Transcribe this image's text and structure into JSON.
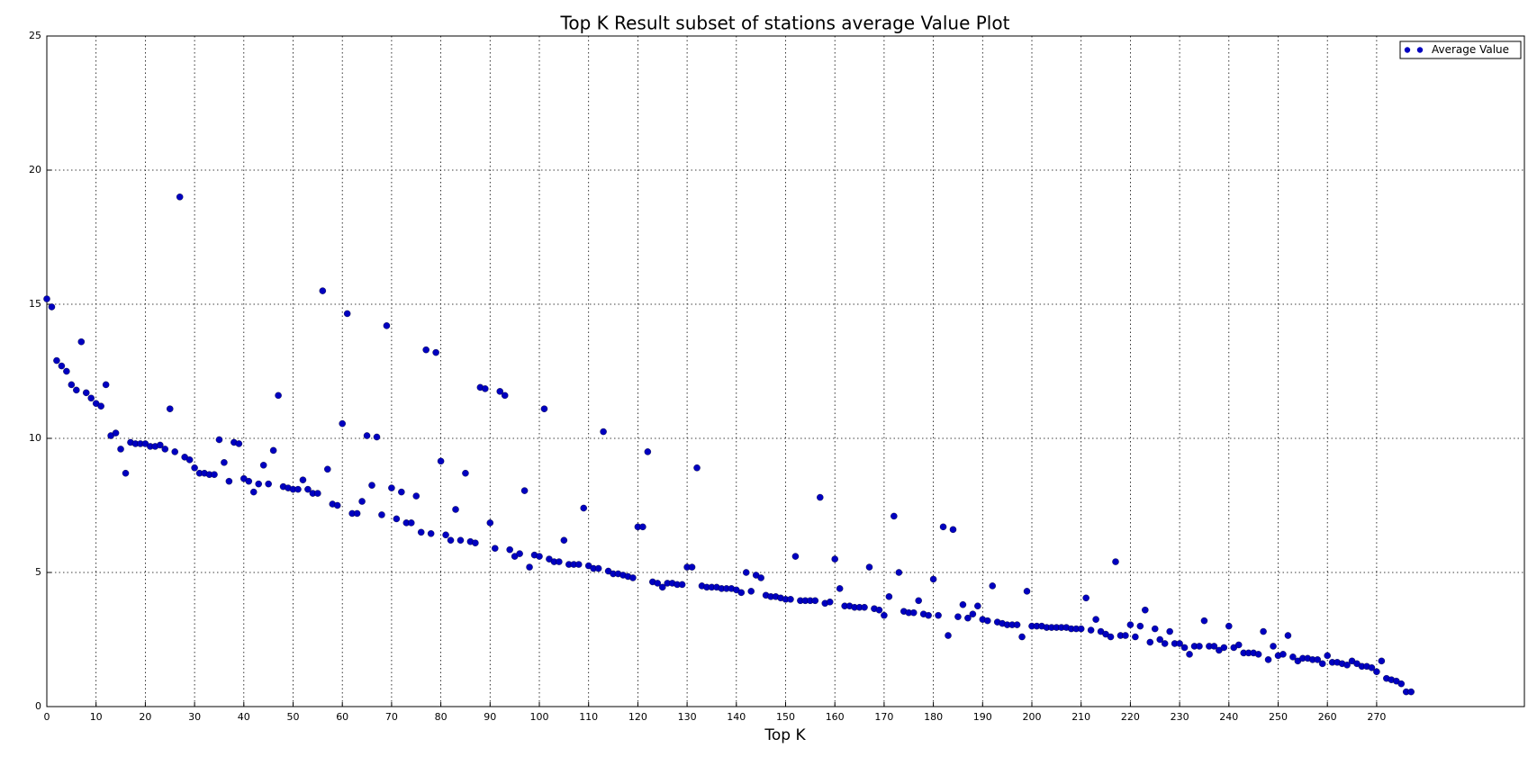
{
  "chart_data": {
    "type": "scatter",
    "title": "Top K Result subset of stations average Value Plot",
    "x_label": "Top K",
    "x": [
      0,
      1,
      2,
      3,
      4,
      5,
      6,
      7,
      8,
      9,
      10,
      11,
      12,
      13,
      14,
      15,
      16,
      17,
      18,
      19,
      20,
      21,
      22,
      23,
      24,
      25,
      26,
      27,
      28,
      29,
      30,
      31,
      32,
      33,
      34,
      35,
      36,
      37,
      38,
      39,
      40,
      41,
      42,
      43,
      44,
      45,
      46,
      47,
      48,
      49,
      50,
      51,
      52,
      53,
      54,
      55,
      56,
      57,
      58,
      59,
      60,
      61,
      62,
      63,
      64,
      65,
      66,
      67,
      68,
      69,
      70,
      71,
      72,
      73,
      74,
      75,
      76,
      77,
      78,
      79,
      80,
      81,
      82,
      83,
      84,
      85,
      86,
      87,
      88,
      89,
      90,
      91,
      92,
      93,
      94,
      95,
      96,
      97,
      98,
      99,
      100,
      101,
      102,
      103,
      104,
      105,
      106,
      107,
      108,
      109,
      110,
      111,
      112,
      113,
      114,
      115,
      116,
      117,
      118,
      119,
      120,
      121,
      122,
      123,
      124,
      125,
      126,
      127,
      128,
      129,
      130,
      131,
      132,
      133,
      134,
      135,
      136,
      137,
      138,
      139,
      140,
      141,
      142,
      143,
      144,
      145,
      146,
      147,
      148,
      149,
      150,
      151,
      152,
      153,
      154,
      155,
      156,
      157,
      158,
      159,
      160,
      161,
      162,
      163,
      164,
      165,
      166,
      167,
      168,
      169,
      170,
      171,
      172,
      173,
      174,
      175,
      176,
      177,
      178,
      179,
      180,
      181,
      182,
      183,
      184,
      185,
      186,
      187,
      188,
      189,
      190,
      191,
      192,
      193,
      194,
      195,
      196,
      197,
      198,
      199,
      200,
      201,
      202,
      203,
      204,
      205,
      206,
      207,
      208,
      209,
      210,
      211,
      212,
      213,
      214,
      215,
      216,
      217,
      218,
      219,
      220,
      221,
      222,
      223,
      224,
      225,
      226,
      227,
      228,
      229,
      230,
      231,
      232,
      233,
      234,
      235,
      236,
      237,
      238,
      239,
      240,
      241,
      242,
      243,
      244,
      245,
      246,
      247,
      248,
      249,
      250,
      251,
      252,
      253,
      254,
      255,
      256,
      257,
      258,
      259,
      260,
      261,
      262,
      263,
      264,
      265,
      266,
      267,
      268,
      269,
      270,
      271,
      272,
      273,
      274,
      275,
      276,
      277
    ],
    "series": [
      {
        "name": "Average Value",
        "color": "#0000c0",
        "values": [
          15.2,
          14.9,
          12.9,
          12.7,
          12.5,
          12.0,
          11.8,
          13.6,
          11.7,
          11.5,
          11.3,
          11.2,
          12.0,
          10.1,
          10.2,
          9.6,
          8.7,
          9.85,
          9.8,
          9.8,
          9.8,
          9.7,
          9.7,
          9.75,
          9.6,
          11.1,
          9.5,
          19.0,
          9.3,
          9.2,
          8.9,
          8.7,
          8.7,
          8.65,
          8.65,
          9.95,
          9.1,
          8.4,
          9.85,
          9.8,
          8.5,
          8.4,
          8.0,
          8.3,
          9.0,
          8.3,
          9.55,
          11.6,
          8.2,
          8.15,
          8.1,
          8.1,
          8.45,
          8.1,
          7.95,
          7.95,
          15.5,
          8.85,
          7.55,
          7.5,
          10.55,
          14.65,
          7.2,
          7.2,
          7.65,
          10.1,
          8.25,
          10.05,
          7.15,
          14.2,
          8.15,
          7.0,
          8.0,
          6.85,
          6.85,
          7.85,
          6.5,
          13.3,
          6.45,
          13.2,
          9.15,
          6.4,
          6.2,
          7.35,
          6.2,
          8.7,
          6.15,
          6.1,
          11.9,
          11.85,
          6.85,
          5.9,
          11.75,
          11.6,
          5.85,
          5.6,
          5.7,
          8.05,
          5.2,
          5.65,
          5.6,
          11.1,
          5.5,
          5.4,
          5.4,
          6.2,
          5.3,
          5.3,
          5.3,
          7.4,
          5.25,
          5.15,
          5.15,
          10.25,
          5.05,
          4.95,
          4.95,
          4.9,
          4.85,
          4.8,
          6.7,
          6.7,
          9.5,
          4.65,
          4.6,
          4.45,
          4.6,
          4.6,
          4.55,
          4.55,
          5.2,
          5.2,
          8.9,
          4.5,
          4.45,
          4.45,
          4.45,
          4.4,
          4.4,
          4.4,
          4.35,
          4.25,
          5.0,
          4.3,
          4.9,
          4.8,
          4.15,
          4.1,
          4.1,
          4.05,
          4.0,
          4.0,
          5.6,
          3.95,
          3.95,
          3.95,
          3.95,
          7.8,
          3.85,
          3.9,
          5.5,
          4.4,
          3.75,
          3.75,
          3.7,
          3.7,
          3.7,
          5.2,
          3.65,
          3.6,
          3.4,
          4.1,
          7.1,
          5.0,
          3.55,
          3.5,
          3.5,
          3.95,
          3.45,
          3.4,
          4.75,
          3.4,
          6.7,
          2.65,
          6.6,
          3.35,
          3.8,
          3.3,
          3.45,
          3.75,
          3.25,
          3.2,
          4.5,
          3.15,
          3.1,
          3.05,
          3.05,
          3.05,
          2.6,
          4.3,
          3.0,
          3.0,
          3.0,
          2.95,
          2.95,
          2.95,
          2.95,
          2.95,
          2.9,
          2.9,
          2.9,
          4.05,
          2.85,
          3.25,
          2.8,
          2.7,
          2.6,
          5.4,
          2.65,
          2.65,
          3.05,
          2.6,
          3.0,
          3.6,
          2.4,
          2.9,
          2.5,
          2.35,
          2.8,
          2.35,
          2.35,
          2.2,
          1.95,
          2.25,
          2.25,
          3.2,
          2.25,
          2.25,
          2.1,
          2.2,
          3.0,
          2.2,
          2.3,
          2.0,
          2.0,
          2.0,
          1.95,
          2.8,
          1.75,
          2.25,
          1.9,
          1.95,
          2.65,
          1.85,
          1.7,
          1.8,
          1.8,
          1.75,
          1.75,
          1.6,
          1.9,
          1.65,
          1.65,
          1.6,
          1.55,
          1.7,
          1.6,
          1.5,
          1.5,
          1.45,
          1.3,
          1.7,
          1.05,
          1.0,
          0.95,
          0.85,
          0.55,
          0.55
        ]
      }
    ],
    "xlim": [
      0,
      300
    ],
    "ylim": [
      0,
      25
    ],
    "xticks": [
      0,
      10,
      20,
      30,
      40,
      50,
      60,
      70,
      80,
      90,
      100,
      110,
      120,
      130,
      140,
      150,
      160,
      170,
      180,
      190,
      200,
      210,
      220,
      230,
      240,
      250,
      260,
      270
    ],
    "yticks": [
      0,
      5,
      10,
      15,
      20,
      25
    ],
    "grid": true,
    "legend": "upper right"
  }
}
